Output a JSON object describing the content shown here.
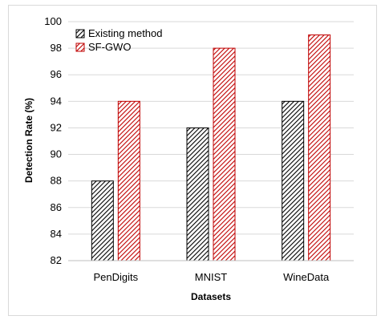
{
  "chart_data": {
    "type": "bar",
    "title": "",
    "xlabel": "Datasets",
    "ylabel": "Detection Rate (%)",
    "categories": [
      "PenDigits",
      "MNIST",
      "WineData"
    ],
    "ylim": [
      82,
      100
    ],
    "yticks": [
      82,
      84,
      86,
      88,
      90,
      92,
      94,
      96,
      98,
      100
    ],
    "grid": "horizontal",
    "legend_position": "top-left",
    "series": [
      {
        "name": "Existing method",
        "values": [
          88,
          92,
          94
        ],
        "color": "#000000",
        "pattern": "diagonal-hatch"
      },
      {
        "name": "SF-GWO",
        "values": [
          94,
          98,
          99
        ],
        "color": "#c00000",
        "pattern": "diagonal-hatch"
      }
    ]
  }
}
